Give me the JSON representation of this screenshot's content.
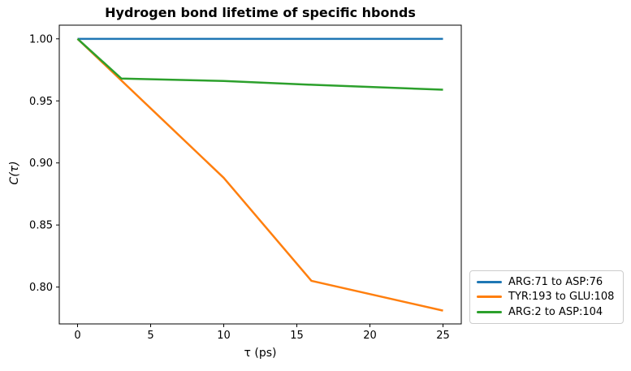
{
  "figure": {
    "title": "Hydrogen bond lifetime of specific hbonds",
    "xlabel": "τ (ps)",
    "ylabel": "C(τ)"
  },
  "chart_data": {
    "type": "line",
    "title": "Hydrogen bond lifetime of specific hbonds",
    "xlabel": "τ (ps)",
    "ylabel": "C(τ)",
    "xlim": [
      -1.25,
      26.25
    ],
    "ylim": [
      0.7703,
      1.011
    ],
    "grid": false,
    "legend_position": "outside lower right",
    "xtick_labels": [
      "0",
      "5",
      "10",
      "15",
      "20",
      "25"
    ],
    "xtick_values": [
      0,
      5,
      10,
      15,
      20,
      25
    ],
    "ytick_labels": [
      "0.80",
      "0.85",
      "0.90",
      "0.95",
      "1.00"
    ],
    "ytick_values": [
      0.8,
      0.85,
      0.9,
      0.95,
      1.0
    ],
    "series": [
      {
        "name": "ARG:71 to ASP:76",
        "color": "#1f77b4",
        "x": [
          0,
          5,
          10,
          15,
          20,
          25
        ],
        "y": [
          1.0,
          1.0,
          1.0,
          1.0,
          1.0,
          1.0
        ]
      },
      {
        "name": "TYR:193 to GLU:108",
        "color": "#ff7f0e",
        "x": [
          0,
          5,
          10,
          16,
          25
        ],
        "y": [
          1.0,
          0.944,
          0.888,
          0.805,
          0.781
        ]
      },
      {
        "name": "ARG:2 to ASP:104",
        "color": "#2ca02c",
        "x": [
          0,
          3,
          10,
          16,
          25
        ],
        "y": [
          1.0,
          0.968,
          0.966,
          0.963,
          0.959
        ]
      }
    ]
  }
}
